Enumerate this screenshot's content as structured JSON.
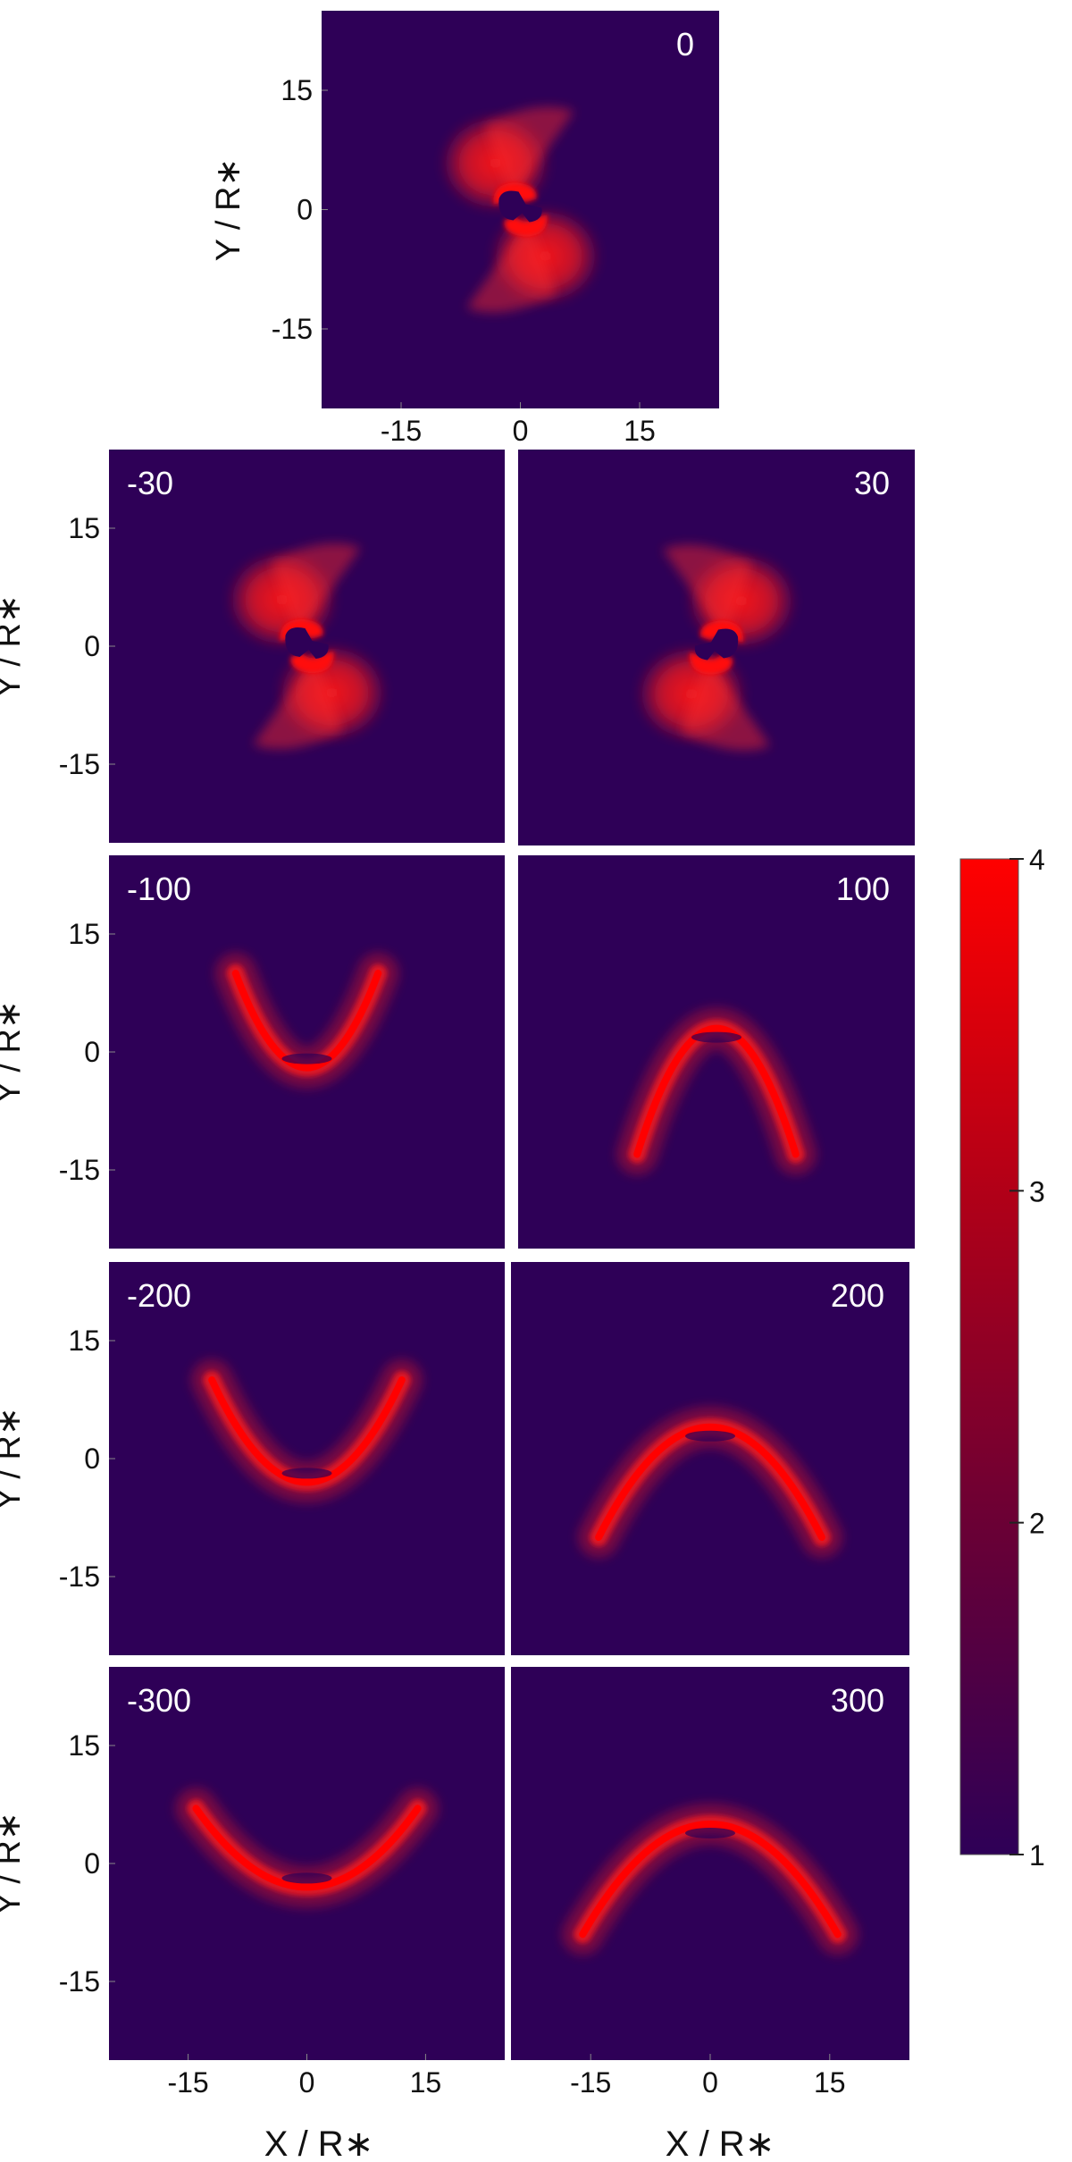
{
  "chart_data": {
    "type": "heatmap",
    "title": "",
    "xlabel": "X / R∗",
    "ylabel": "Y / R∗",
    "xlim": [
      -25,
      25
    ],
    "ylim": [
      -25,
      25
    ],
    "xticks": [
      "-15",
      "0",
      "15"
    ],
    "yticks": [
      "15",
      "0",
      "-15"
    ],
    "grid": false,
    "colorbar": {
      "range": [
        1,
        4
      ],
      "ticks": [
        "1",
        "2",
        "3",
        "4"
      ],
      "low_color": "#2e0057",
      "high_color": "#ff0000"
    },
    "background_color": "#2e0057",
    "peak_color": "#ff1a1a",
    "panels": [
      {
        "label": "0",
        "shape": "s-spiral",
        "orientation": "normal"
      },
      {
        "label": "-30",
        "shape": "s-spiral",
        "orientation": "normal"
      },
      {
        "label": "30",
        "shape": "s-spiral",
        "orientation": "mirrored"
      },
      {
        "label": "-100",
        "shape": "u-arc",
        "orientation": "open-up",
        "x_half_width": 9,
        "y_apex": -2,
        "y_arms": 10
      },
      {
        "label": "100",
        "shape": "u-arc",
        "orientation": "open-down",
        "x_half_width": 10,
        "y_apex": 3,
        "y_arms": -13
      },
      {
        "label": "-200",
        "shape": "u-arc",
        "orientation": "open-up",
        "x_half_width": 12,
        "y_apex": -3,
        "y_arms": 10
      },
      {
        "label": "200",
        "shape": "u-arc",
        "orientation": "open-down",
        "x_half_width": 14,
        "y_apex": 4,
        "y_arms": -10
      },
      {
        "label": "-300",
        "shape": "u-arc",
        "orientation": "open-up",
        "x_half_width": 14,
        "y_apex": -3,
        "y_arms": 7
      },
      {
        "label": "300",
        "shape": "u-arc",
        "orientation": "open-down",
        "x_half_width": 16,
        "y_apex": 5,
        "y_arms": -9
      }
    ]
  }
}
